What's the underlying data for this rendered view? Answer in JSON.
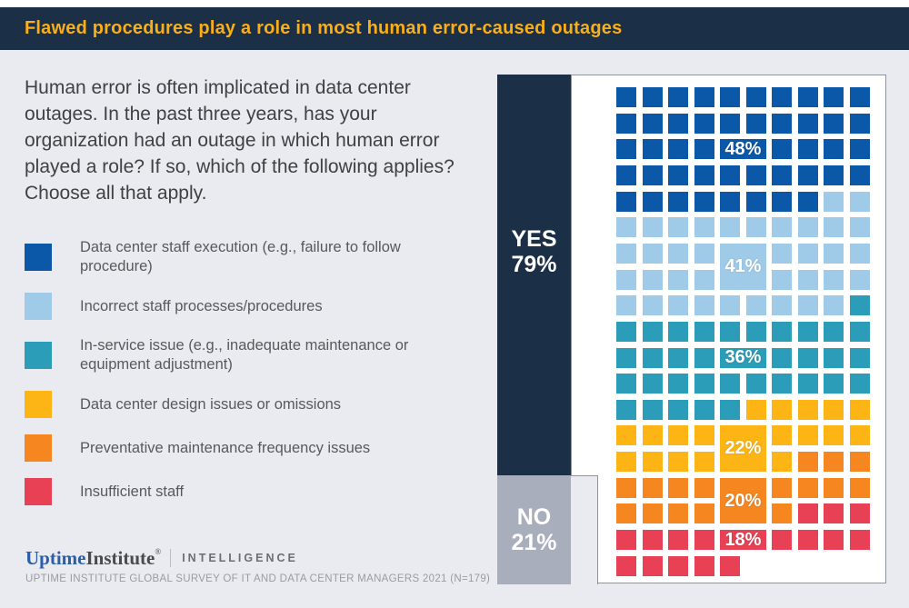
{
  "header": {
    "title": "Flawed procedures play a role in most human error-caused outages"
  },
  "intro": "Human error is often implicated in data center outages. In the past three years, has your organization had an outage in which human error played a role? If so, which of the following applies? Choose all that apply.",
  "legend": {
    "items": [
      {
        "label": "Data center staff execution (e.g., failure to follow procedure)",
        "color": "#0b58a8"
      },
      {
        "label": "Incorrect staff processes/procedures",
        "color": "#a0cbe8"
      },
      {
        "label": "In-service issue (e.g., inadequate maintenance or equipment adjustment)",
        "color": "#2b9db8"
      },
      {
        "label": "Data center design issues or omissions",
        "color": "#fdb515"
      },
      {
        "label": "Preventative maintenance frequency issues",
        "color": "#f6861f"
      },
      {
        "label": "Insufficient staff",
        "color": "#e84155"
      }
    ]
  },
  "footer": {
    "brand_part1": "Uptime",
    "brand_part2": "Institute",
    "brand_reg": "®",
    "division": "INTELLIGENCE",
    "source": "UPTIME INSTITUTE GLOBAL SURVEY OF IT AND DATA CENTER MANAGERS 2021 (N=179)"
  },
  "chart_data": {
    "type": "waffle",
    "title": "Flawed procedures play a role in most human error-caused outages",
    "question": "Human error is often implicated in data center outages. In the past three years, has your organization had an outage in which human error played a role? If so, which of the following applies? Choose all that apply.",
    "grid": {
      "columns": 10,
      "total_squares": 185
    },
    "yes_no": {
      "yes": {
        "label": "YES",
        "value": 79,
        "value_label": "79%",
        "color": "#1b2f47"
      },
      "no": {
        "label": "NO",
        "value": 21,
        "value_label": "21%",
        "color": "#a8aebb"
      }
    },
    "series": [
      {
        "name": "Data center staff execution (e.g., failure to follow procedure)",
        "value": 48,
        "label": "48%",
        "color": "#0b58a8"
      },
      {
        "name": "Incorrect staff processes/procedures",
        "value": 41,
        "label": "41%",
        "color": "#a0cbe8"
      },
      {
        "name": "In-service issue (e.g., inadequate maintenance or equipment adjustment)",
        "value": 36,
        "label": "36%",
        "color": "#2b9db8"
      },
      {
        "name": "Data center design issues or omissions",
        "value": 22,
        "label": "22%",
        "color": "#fdb515"
      },
      {
        "name": "Preventative maintenance frequency issues",
        "value": 20,
        "label": "20%",
        "color": "#f6861f"
      },
      {
        "name": "Insufficient staff",
        "value": 18,
        "label": "18%",
        "color": "#e84155"
      }
    ],
    "value_labels": [
      {
        "text": "48%",
        "row": 3,
        "row_span": 1,
        "color": "#0b58a8"
      },
      {
        "text": "41%",
        "row": 7,
        "row_span": 2,
        "color": "#a0cbe8"
      },
      {
        "text": "36%",
        "row": 11,
        "row_span": 1,
        "color": "#2b9db8"
      },
      {
        "text": "22%",
        "row": 14,
        "row_span": 2,
        "color": "#fdb515"
      },
      {
        "text": "20%",
        "row": 16,
        "row_span": 2,
        "color": "#f6861f"
      },
      {
        "text": "18%",
        "row": 18,
        "row_span": 1,
        "color": "#e84155"
      }
    ]
  }
}
